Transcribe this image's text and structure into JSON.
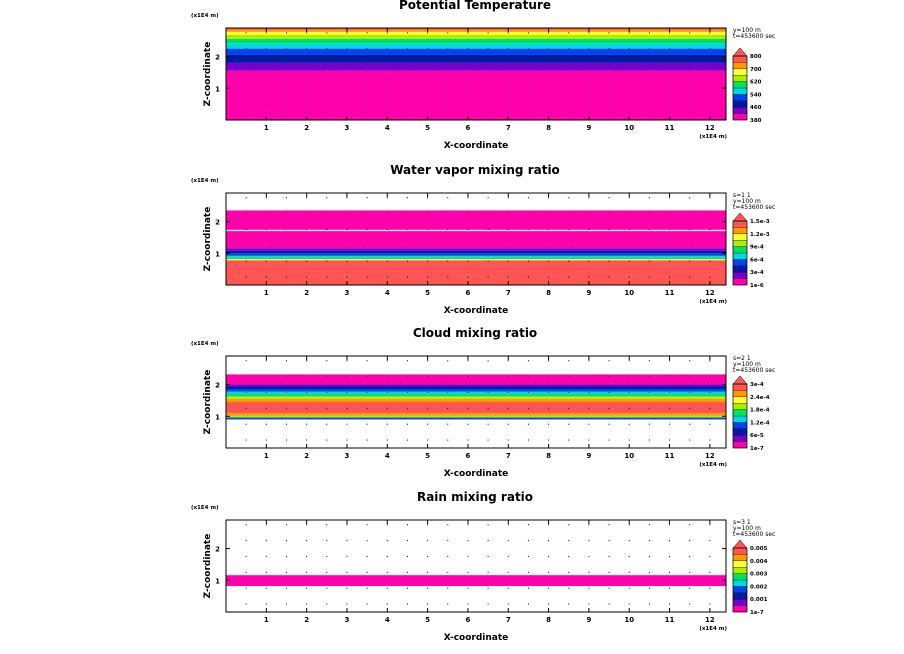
{
  "chart_data": [
    {
      "type": "heatmap",
      "title": "Potential Temperature",
      "xlabel": "X-coordinate",
      "ylabel": "Z-coordinate",
      "x_unit": "(x1E4 m)",
      "z_unit": "(x1E4 m)",
      "xlim": [
        0,
        12.4
      ],
      "ylim": [
        0,
        2.9
      ],
      "xticks": [
        "1",
        "2",
        "3",
        "4",
        "5",
        "6",
        "7",
        "8",
        "9",
        "10",
        "11",
        "12"
      ],
      "yticks": [
        "1",
        "2"
      ],
      "info": [
        "y=100 m",
        "t=453600 sec"
      ],
      "colorbar": {
        "colors": [
          "#ff00aa",
          "#7700cc",
          "#001aa0",
          "#0044ee",
          "#00d8e0",
          "#00e060",
          "#aaee00",
          "#ffff33",
          "#ff9900",
          "#ff5555"
        ],
        "labels": [
          "380",
          "460",
          "540",
          "620",
          "700",
          "800"
        ]
      },
      "bands": [
        {
          "z0": 0.0,
          "z1": 1.55,
          "color": "#ff00aa"
        },
        {
          "z0": 1.55,
          "z1": 1.8,
          "color": "#7700cc"
        },
        {
          "z0": 1.8,
          "z1": 2.05,
          "color": "#001aa0"
        },
        {
          "z0": 2.05,
          "z1": 2.25,
          "color": "#0044ee"
        },
        {
          "z0": 2.25,
          "z1": 2.42,
          "color": "#00d8e0"
        },
        {
          "z0": 2.42,
          "z1": 2.56,
          "color": "#00e060"
        },
        {
          "z0": 2.56,
          "z1": 2.68,
          "color": "#aaee00"
        },
        {
          "z0": 2.68,
          "z1": 2.78,
          "color": "#ffff33"
        },
        {
          "z0": 2.78,
          "z1": 2.85,
          "color": "#ff9900"
        },
        {
          "z0": 2.85,
          "z1": 2.9,
          "color": "#ff5555"
        }
      ]
    },
    {
      "type": "heatmap",
      "title": "Water vapor mixing ratio",
      "xlabel": "X-coordinate",
      "ylabel": "Z-coordinate",
      "x_unit": "(x1E4 m)",
      "z_unit": "(x1E4 m)",
      "xlim": [
        0,
        12.4
      ],
      "ylim": [
        0,
        2.9
      ],
      "xticks": [
        "1",
        "2",
        "3",
        "4",
        "5",
        "6",
        "7",
        "8",
        "9",
        "10",
        "11",
        "12"
      ],
      "yticks": [
        "1",
        "2"
      ],
      "info": [
        "s=1 1",
        "y=100 m",
        "t=453600 sec"
      ],
      "colorbar": {
        "colors": [
          "#ff00aa",
          "#7700cc",
          "#001aa0",
          "#0044ee",
          "#00d8e0",
          "#00e060",
          "#aaee00",
          "#ffff33",
          "#ff9900",
          "#ff5555"
        ],
        "labels": [
          "1e-6",
          "3e-4",
          "6e-4",
          "9e-4",
          "1.2e-3",
          "1.5e-3"
        ]
      },
      "bands": [
        {
          "z0": 0.0,
          "z1": 0.78,
          "color": "#ff5555"
        },
        {
          "z0": 0.78,
          "z1": 0.82,
          "color": "#ffff33"
        },
        {
          "z0": 0.82,
          "z1": 0.86,
          "color": "#00e060"
        },
        {
          "z0": 0.86,
          "z1": 0.92,
          "color": "#00d8e0"
        },
        {
          "z0": 0.92,
          "z1": 1.0,
          "color": "#0044ee"
        },
        {
          "z0": 1.0,
          "z1": 1.08,
          "color": "#001aa0"
        },
        {
          "z0": 1.08,
          "z1": 1.16,
          "color": "#7700cc"
        },
        {
          "z0": 1.16,
          "z1": 1.7,
          "color": "#ff00aa"
        },
        {
          "z0": 1.7,
          "z1": 1.74,
          "color": "#ffffff"
        },
        {
          "z0": 1.74,
          "z1": 2.35,
          "color": "#ff00aa"
        }
      ]
    },
    {
      "type": "heatmap",
      "title": "Cloud mixing ratio",
      "xlabel": "X-coordinate",
      "ylabel": "Z-coordinate",
      "x_unit": "(x1E4 m)",
      "z_unit": "(x1E4 m)",
      "xlim": [
        0,
        12.4
      ],
      "ylim": [
        0,
        2.9
      ],
      "xticks": [
        "1",
        "2",
        "3",
        "4",
        "5",
        "6",
        "7",
        "8",
        "9",
        "10",
        "11",
        "12"
      ],
      "yticks": [
        "1",
        "2"
      ],
      "info": [
        "s=2 1",
        "y=100 m",
        "t=453600 sec"
      ],
      "colorbar": {
        "colors": [
          "#ff00aa",
          "#7700cc",
          "#001aa0",
          "#0044ee",
          "#00d8e0",
          "#00e060",
          "#aaee00",
          "#ffff33",
          "#ff9900",
          "#ff5555"
        ],
        "labels": [
          "1e-7",
          "6e-5",
          "1.2e-4",
          "1.8e-4",
          "2.4e-4",
          "3e-4"
        ]
      },
      "bands": [
        {
          "z0": 0.9,
          "z1": 0.96,
          "color": "#0044ee"
        },
        {
          "z0": 0.96,
          "z1": 1.02,
          "color": "#aaee00"
        },
        {
          "z0": 1.02,
          "z1": 1.1,
          "color": "#ff9900"
        },
        {
          "z0": 1.1,
          "z1": 1.45,
          "color": "#ff5555"
        },
        {
          "z0": 1.45,
          "z1": 1.55,
          "color": "#ff9900"
        },
        {
          "z0": 1.55,
          "z1": 1.63,
          "color": "#aaee00"
        },
        {
          "z0": 1.63,
          "z1": 1.7,
          "color": "#00e060"
        },
        {
          "z0": 1.7,
          "z1": 1.78,
          "color": "#00d8e0"
        },
        {
          "z0": 1.78,
          "z1": 1.86,
          "color": "#0044ee"
        },
        {
          "z0": 1.86,
          "z1": 1.94,
          "color": "#001aa0"
        },
        {
          "z0": 1.94,
          "z1": 2.0,
          "color": "#7700cc"
        },
        {
          "z0": 2.0,
          "z1": 2.32,
          "color": "#ff00aa"
        }
      ]
    },
    {
      "type": "heatmap",
      "title": "Rain mixing ratio",
      "xlabel": "X-coordinate",
      "ylabel": "Z-coordinate",
      "x_unit": "(x1E4 m)",
      "z_unit": "(x1E4 m)",
      "xlim": [
        0,
        12.4
      ],
      "ylim": [
        0,
        2.9
      ],
      "xticks": [
        "1",
        "2",
        "3",
        "4",
        "5",
        "6",
        "7",
        "8",
        "9",
        "10",
        "11",
        "12"
      ],
      "yticks": [
        "1",
        "2"
      ],
      "info": [
        "s=3 1",
        "y=100 m",
        "t=453600 sec"
      ],
      "colorbar": {
        "colors": [
          "#ff00aa",
          "#7700cc",
          "#001aa0",
          "#0044ee",
          "#00d8e0",
          "#00e060",
          "#aaee00",
          "#ffff33",
          "#ff9900",
          "#ff5555"
        ],
        "labels": [
          "1e-7",
          "0.001",
          "0.002",
          "0.003",
          "0.004",
          "0.005"
        ]
      },
      "bands": [
        {
          "z0": 0.82,
          "z1": 1.16,
          "color": "#ff00aa"
        }
      ]
    }
  ]
}
